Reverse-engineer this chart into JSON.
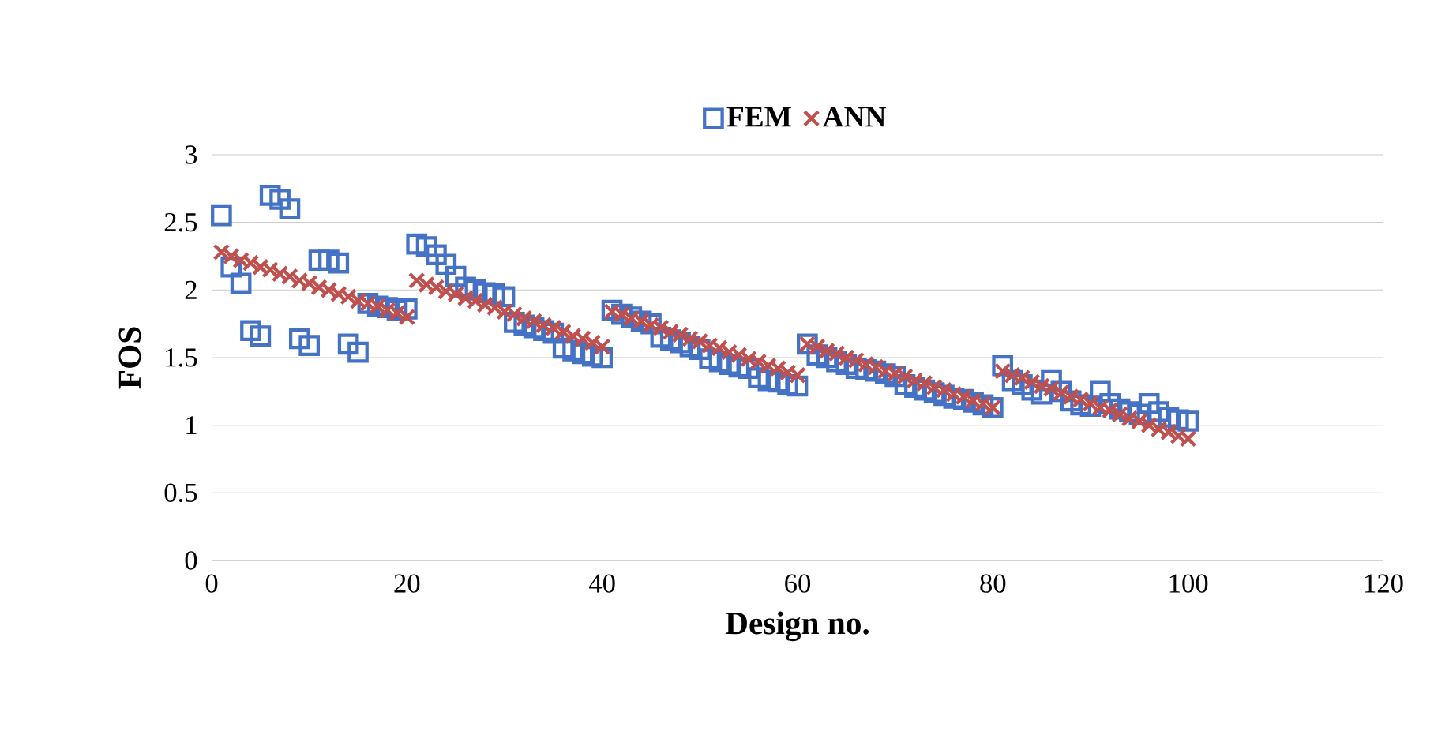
{
  "chart_data": {
    "type": "scatter",
    "xlabel": "Design no.",
    "ylabel": "FOS",
    "xlim": [
      0,
      120
    ],
    "xticks": [
      0,
      20,
      40,
      60,
      80,
      100,
      120
    ],
    "ylim": [
      0,
      3
    ],
    "yticks": [
      0,
      0.5,
      1,
      1.5,
      2,
      2.5,
      3
    ],
    "grid": "y",
    "legend": "top",
    "x": [
      1,
      2,
      3,
      4,
      5,
      6,
      7,
      8,
      9,
      10,
      11,
      12,
      13,
      14,
      15,
      16,
      17,
      18,
      19,
      20,
      21,
      22,
      23,
      24,
      25,
      26,
      27,
      28,
      29,
      30,
      31,
      32,
      33,
      34,
      35,
      36,
      37,
      38,
      39,
      40,
      41,
      42,
      43,
      44,
      45,
      46,
      47,
      48,
      49,
      50,
      51,
      52,
      53,
      54,
      55,
      56,
      57,
      58,
      59,
      60,
      61,
      62,
      63,
      64,
      65,
      66,
      67,
      68,
      69,
      70,
      71,
      72,
      73,
      74,
      75,
      76,
      77,
      78,
      79,
      80,
      81,
      82,
      83,
      84,
      85,
      86,
      87,
      88,
      89,
      90,
      91,
      92,
      93,
      94,
      95,
      96,
      97,
      98,
      99,
      100
    ],
    "series": [
      {
        "name": "FEM",
        "color": "#4472c4",
        "marker": "square",
        "values": [
          2.55,
          2.17,
          2.05,
          1.7,
          1.66,
          2.7,
          2.67,
          2.6,
          1.64,
          1.59,
          2.22,
          2.22,
          2.2,
          1.6,
          1.54,
          1.9,
          1.88,
          1.87,
          1.85,
          1.86,
          2.34,
          2.32,
          2.26,
          2.19,
          2.1,
          2.02,
          2.0,
          1.98,
          1.97,
          1.95,
          1.76,
          1.74,
          1.72,
          1.7,
          1.68,
          1.57,
          1.55,
          1.53,
          1.51,
          1.5,
          1.85,
          1.82,
          1.8,
          1.77,
          1.75,
          1.65,
          1.63,
          1.61,
          1.58,
          1.56,
          1.49,
          1.47,
          1.45,
          1.43,
          1.42,
          1.35,
          1.33,
          1.32,
          1.3,
          1.29,
          1.6,
          1.52,
          1.5,
          1.47,
          1.45,
          1.42,
          1.41,
          1.4,
          1.38,
          1.36,
          1.3,
          1.28,
          1.26,
          1.24,
          1.22,
          1.2,
          1.19,
          1.17,
          1.15,
          1.13,
          1.44,
          1.33,
          1.3,
          1.26,
          1.23,
          1.33,
          1.25,
          1.18,
          1.15,
          1.14,
          1.25,
          1.16,
          1.12,
          1.1,
          1.08,
          1.16,
          1.1,
          1.06,
          1.04,
          1.03
        ]
      },
      {
        "name": "ANN",
        "color": "#c0504d",
        "marker": "cross",
        "values": [
          2.28,
          2.25,
          2.22,
          2.2,
          2.17,
          2.15,
          2.12,
          2.1,
          2.07,
          2.05,
          2.02,
          2.0,
          1.97,
          1.95,
          1.92,
          1.9,
          1.88,
          1.85,
          1.83,
          1.8,
          2.07,
          2.04,
          2.02,
          1.99,
          1.97,
          1.94,
          1.92,
          1.89,
          1.87,
          1.84,
          1.82,
          1.79,
          1.77,
          1.74,
          1.72,
          1.69,
          1.66,
          1.64,
          1.61,
          1.58,
          1.84,
          1.82,
          1.79,
          1.77,
          1.74,
          1.72,
          1.69,
          1.67,
          1.64,
          1.62,
          1.59,
          1.57,
          1.54,
          1.52,
          1.49,
          1.47,
          1.44,
          1.42,
          1.39,
          1.37,
          1.6,
          1.58,
          1.55,
          1.53,
          1.5,
          1.48,
          1.45,
          1.43,
          1.4,
          1.38,
          1.36,
          1.33,
          1.31,
          1.28,
          1.26,
          1.23,
          1.21,
          1.18,
          1.16,
          1.13,
          1.4,
          1.37,
          1.35,
          1.32,
          1.29,
          1.27,
          1.24,
          1.21,
          1.19,
          1.16,
          1.13,
          1.11,
          1.08,
          1.05,
          1.03,
          1.0,
          0.97,
          0.95,
          0.92,
          0.9
        ]
      }
    ]
  }
}
